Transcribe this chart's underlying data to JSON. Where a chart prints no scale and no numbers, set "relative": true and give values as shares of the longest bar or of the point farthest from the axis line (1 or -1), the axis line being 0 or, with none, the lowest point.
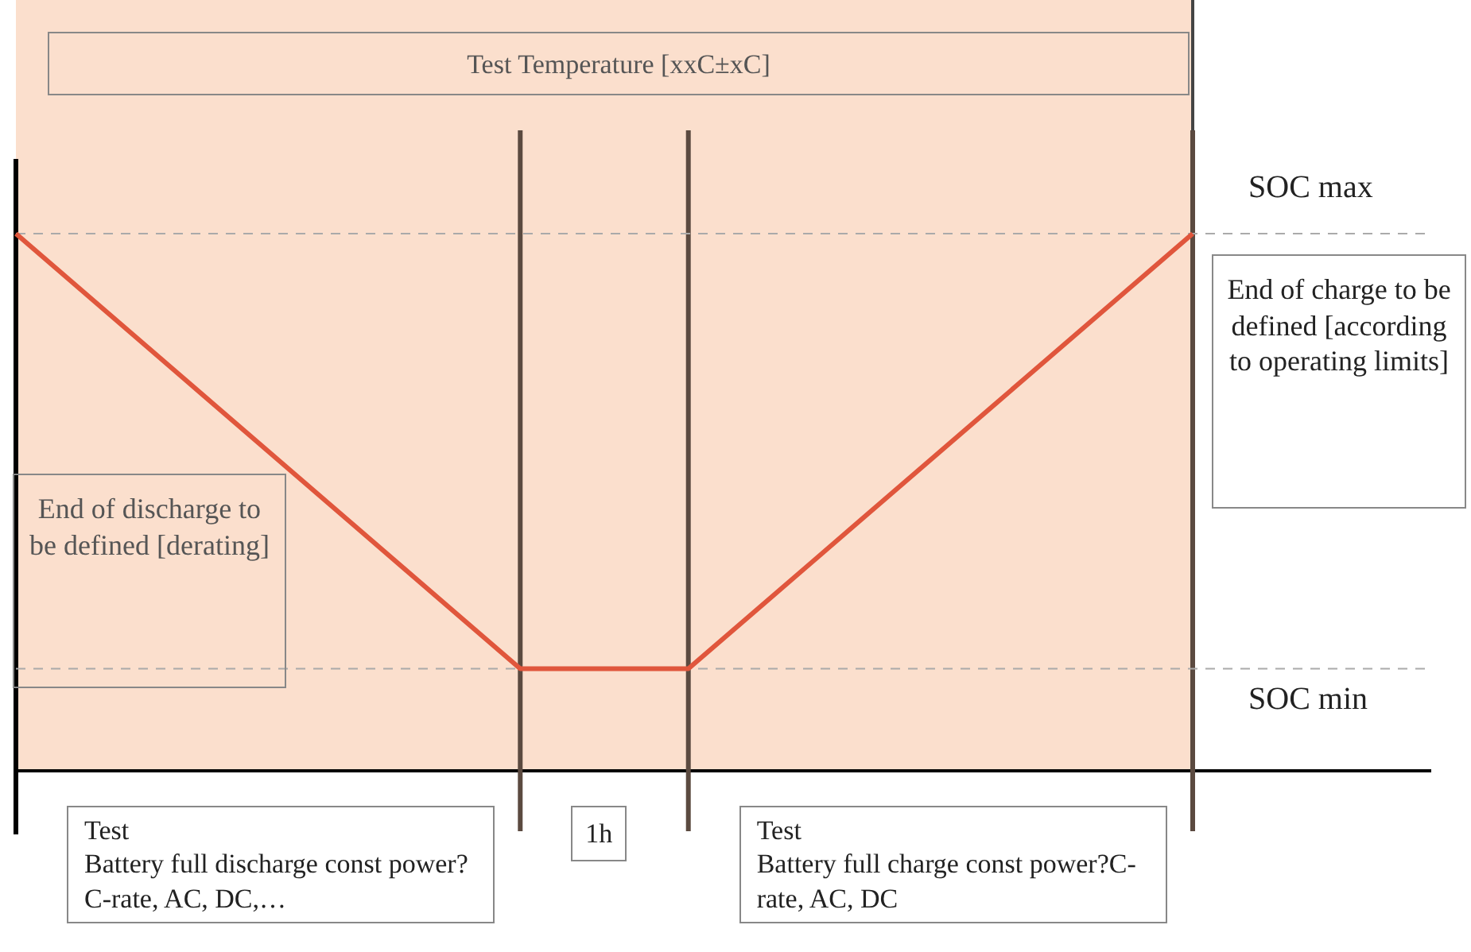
{
  "chart_data": {
    "type": "line",
    "relative": true,
    "categories": [
      null,
      null,
      null,
      null,
      null,
      null,
      null,
      null
    ],
    "series": [
      {
        "color": "#e0563c",
        "values": [
          1,
          0.73,
          0.46,
          0.19,
          0.19,
          0.46,
          0.73,
          1
        ]
      }
    ],
    "legend": false,
    "marker": "none",
    "line_style": "solid",
    "ref_lines": [
      {
        "axis": "y",
        "value": 1,
        "label": "SOC max",
        "color": "#aaaaaa",
        "line_style": "dashed"
      },
      {
        "axis": "y",
        "value": 0.19,
        "label": "SOC min",
        "color": "#aaaaaa",
        "line_style": "dashed"
      }
    ],
    "annotations": [
      "Test Temperature [xxC±xC]",
      "End of discharge to be defined [derating]",
      "End of charge to be defined [according to operating limits]",
      "Test\nBattery full discharge const power?C-rate, AC, DC,…",
      "1h",
      "Test\nBattery full charge const power?C-rate, AC, DC"
    ]
  }
}
